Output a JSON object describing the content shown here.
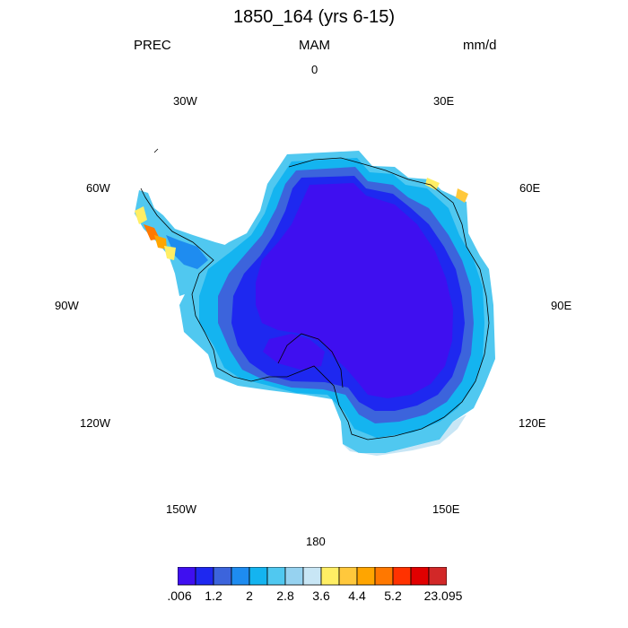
{
  "title": "1850_164 (yrs 6-15)",
  "variable": "PREC",
  "season": "MAM",
  "units": "mm/d",
  "longitude_labels": {
    "0": "0",
    "30E": "30E",
    "60E": "60E",
    "90E": "90E",
    "120E": "120E",
    "150E": "150E",
    "180": "180",
    "150W": "150W",
    "120W": "120W",
    "90W": "90W",
    "60W": "60W",
    "30W": "30W"
  },
  "colorbar": {
    "colors": [
      "#3f0ff0",
      "#1e28f0",
      "#3c64dc",
      "#1e8cf0",
      "#14b4f0",
      "#50c8f0",
      "#96d2f0",
      "#c8e6f5",
      "#ffee64",
      "#ffc83c",
      "#ffa500",
      "#ff7800",
      "#ff3200",
      "#e10000",
      "#d22828"
    ],
    "labels": [
      ".006",
      "1.2",
      "2",
      "2.8",
      "3.6",
      "4.4",
      "5.2",
      "23.095"
    ]
  },
  "map": {
    "projection": "south polar stereographic",
    "field": "precipitation"
  }
}
